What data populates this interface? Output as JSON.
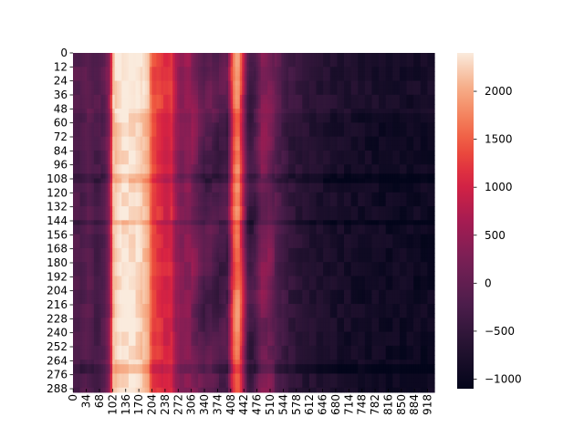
{
  "chart_data": {
    "type": "heatmap",
    "title": "",
    "xlabel": "",
    "ylabel": "",
    "n_rows": 289,
    "n_cols": 936,
    "x_tick_labels": [
      "0",
      "34",
      "68",
      "102",
      "136",
      "170",
      "204",
      "238",
      "272",
      "306",
      "340",
      "374",
      "408",
      "442",
      "476",
      "510",
      "544",
      "578",
      "612",
      "646",
      "680",
      "714",
      "748",
      "782",
      "816",
      "850",
      "884",
      "918"
    ],
    "y_tick_labels": [
      "0",
      "12",
      "24",
      "36",
      "48",
      "60",
      "72",
      "84",
      "96",
      "108",
      "120",
      "132",
      "144",
      "156",
      "168",
      "180",
      "192",
      "204",
      "216",
      "228",
      "240",
      "252",
      "264",
      "276",
      "288"
    ],
    "colorbar": {
      "colormap": "rocket",
      "vmin": -1100,
      "vmax": 2400,
      "tick_labels": [
        "2000",
        "1500",
        "1000",
        "500",
        "0",
        "−500",
        "−1000"
      ],
      "tick_values": [
        2000,
        1500,
        1000,
        500,
        0,
        -500,
        -1000
      ]
    },
    "column_profile": {
      "columns": [
        0,
        20,
        40,
        60,
        80,
        95,
        105,
        120,
        140,
        170,
        195,
        205,
        225,
        240,
        255,
        265,
        280,
        300,
        320,
        340,
        360,
        380,
        400,
        410,
        420,
        430,
        445,
        455,
        470,
        490,
        510,
        530,
        560,
        600,
        640,
        700,
        760,
        820,
        880,
        936
      ],
      "values": [
        -200,
        -250,
        -100,
        -300,
        -150,
        400,
        2100,
        2300,
        2350,
        2300,
        2000,
        1300,
        1200,
        1000,
        1100,
        600,
        300,
        400,
        100,
        -200,
        -150,
        -300,
        -200,
        900,
        1700,
        1700,
        400,
        -400,
        -300,
        300,
        200,
        -200,
        -500,
        -650,
        -750,
        -850,
        -900,
        -950,
        -950,
        -950
      ]
    }
  }
}
